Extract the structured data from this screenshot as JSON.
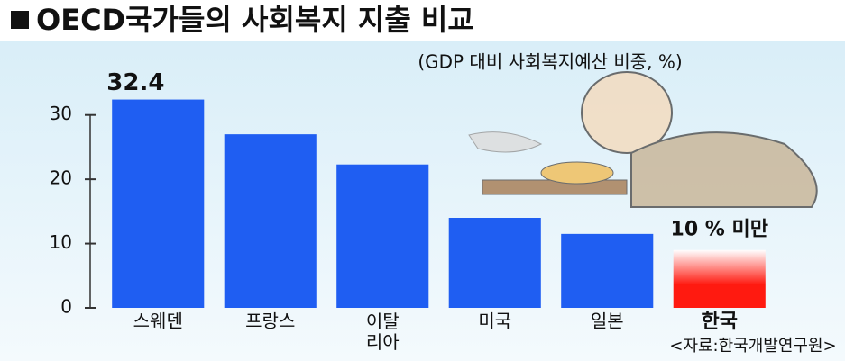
{
  "chart_data": {
    "type": "bar",
    "title": "OECD국가들의 사회복지 지출 비교",
    "subtitle": "(GDP 대비 사회복지예산 비중, %)",
    "categories": [
      "스웨덴",
      "프랑스",
      "이탈리아",
      "미국",
      "일본",
      "한국"
    ],
    "values": [
      32.4,
      27,
      22.3,
      14,
      11.5,
      9
    ],
    "colors": [
      "#1f5ef2",
      "#1f5ef2",
      "#1f5ef2",
      "#1f5ef2",
      "#1f5ef2",
      "#ff1a10"
    ],
    "ylim": [
      0,
      35
    ],
    "yticks": [
      0,
      10,
      20,
      30
    ],
    "annotation": "10 % 미만",
    "source": "<자료:한국개발연구원>"
  }
}
